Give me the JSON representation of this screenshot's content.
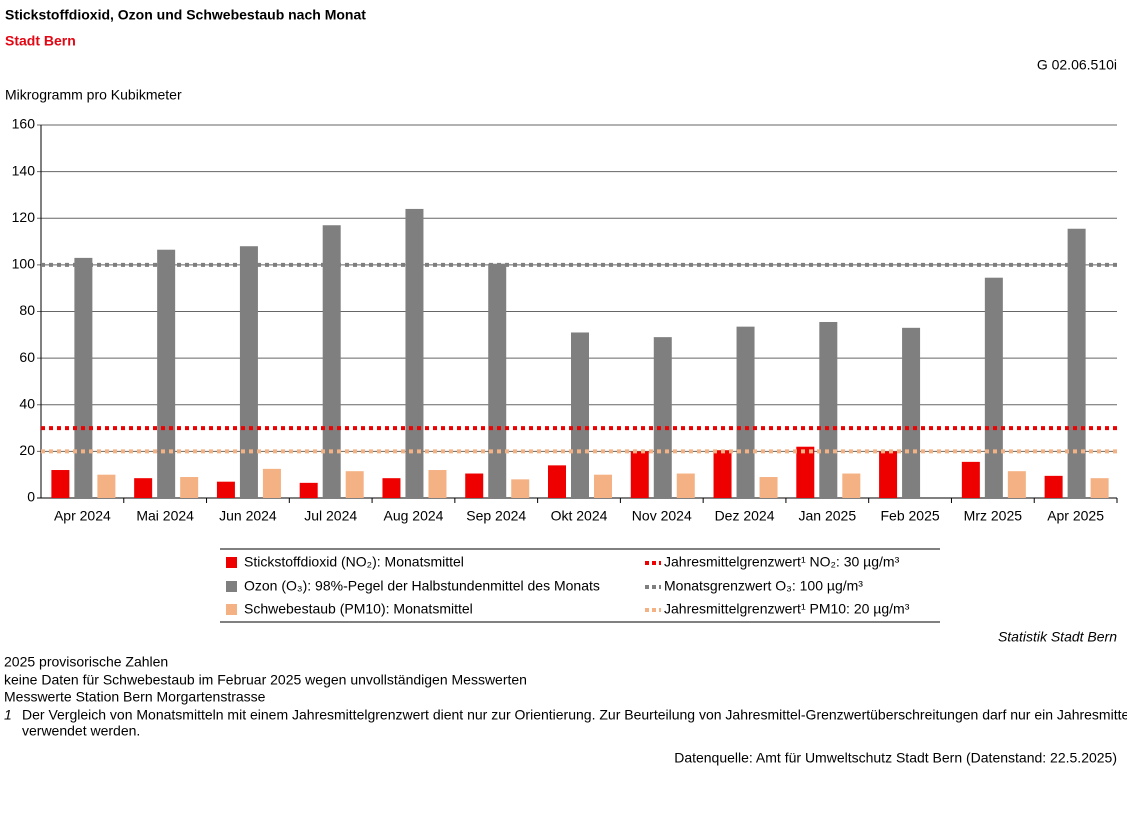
{
  "chart_data": {
    "type": "bar",
    "title": "Stickstoffdioxid, Ozon und Schwebestaub nach Monat",
    "subtitle": "Stadt Bern",
    "code": "G 02.06.510i",
    "y_label": "Mikrogramm pro Kubikmeter",
    "categories": [
      "Apr 2024",
      "Mai 2024",
      "Jun 2024",
      "Jul 2024",
      "Aug 2024",
      "Sep 2024",
      "Okt 2024",
      "Nov 2024",
      "Dez 2024",
      "Jan 2025",
      "Feb 2025",
      "Mrz 2025",
      "Apr 2025"
    ],
    "series": [
      {
        "name": "Stickstoffdioxid (NO₂): Monatsmittel",
        "color": "#ee0000",
        "values": [
          12,
          8.5,
          7,
          6.5,
          8.5,
          10.5,
          14,
          20,
          20.5,
          22,
          20,
          15.5,
          9.5
        ]
      },
      {
        "name": "Ozon (O₃): 98%-Pegel der Halbstundenmittel des Monats",
        "color": "#7f7f7f",
        "values": [
          103,
          106.5,
          108,
          117,
          124,
          100.5,
          71,
          69,
          73.5,
          75.5,
          73,
          94.5,
          115.5
        ]
      },
      {
        "name": "Schwebestaub (PM10): Monatsmittel",
        "color": "#f4b183",
        "values": [
          10,
          9,
          12.5,
          11.5,
          12,
          8,
          10,
          10.5,
          9,
          10.5,
          null,
          11.5,
          8.5
        ]
      }
    ],
    "reference_lines": [
      {
        "name": "Jahresmittelgrenzwert¹ NO₂: 30 µg/m³",
        "value": 30,
        "color": "#ee0000"
      },
      {
        "name": "Monatsgrenzwert O₃: 100 µg/m³",
        "value": 100,
        "color": "#7f7f7f"
      },
      {
        "name": "Jahresmittelgrenzwert¹ PM10: 20 µg/m³",
        "value": 20,
        "color": "#f4b183"
      }
    ],
    "ylim": [
      0,
      160
    ],
    "yticks": [
      0,
      20,
      40,
      60,
      80,
      100,
      120,
      140,
      160
    ],
    "grid": true,
    "source_credit": "Statistik Stadt Bern",
    "notes": [
      "2025 provisorische Zahlen",
      "keine Daten für Schwebestaub im Februar 2025 wegen unvollständigen Messwerten",
      "Messwerte Station Bern Morgartenstrasse"
    ],
    "footnote": {
      "mark": "1",
      "lines": [
        "Der Vergleich von Monatsmitteln mit einem Jahresmittelgrenzwert dient nur zur Orientierung. Zur Beurteilung von Jahresmittel-Grenzwertüberschreitungen darf nur ein Jahresmittelwert",
        "verwendet werden."
      ]
    },
    "data_source": "Datenquelle: Amt für Umweltschutz Stadt Bern (Datenstand: 22.5.2025)"
  }
}
